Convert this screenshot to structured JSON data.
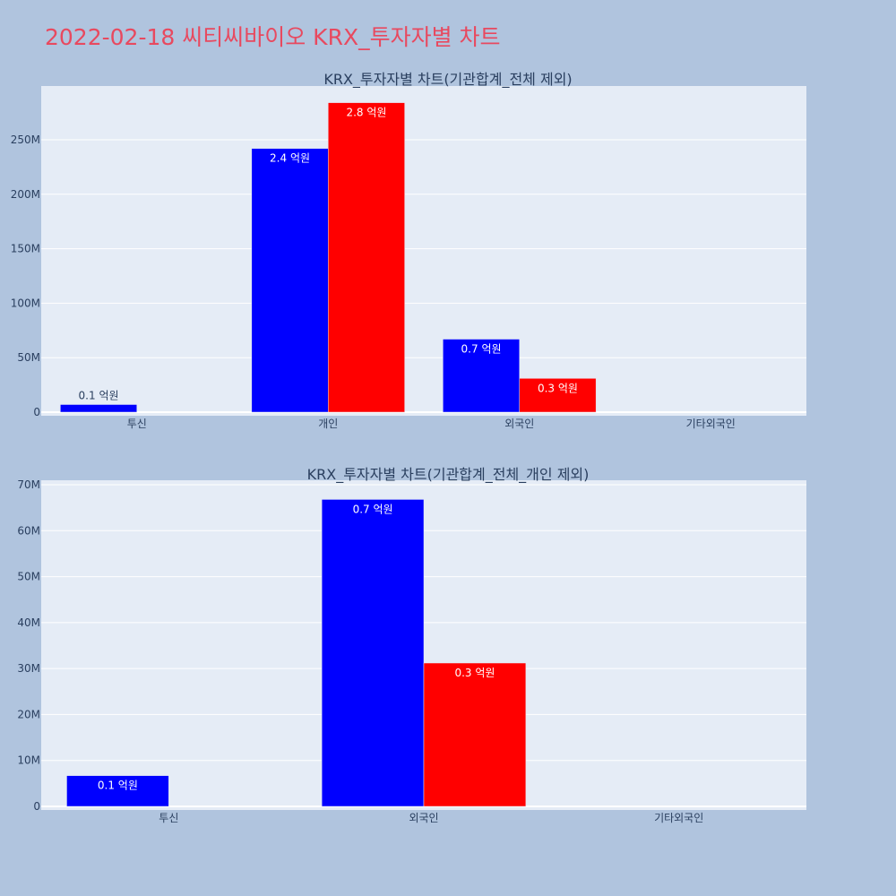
{
  "page_title": "2022-02-18 씨티씨바이오 KRX_투자자별 차트",
  "colors": {
    "background": "#b0c4de",
    "plot_background": "#e5ecf6",
    "title": "#e8495f",
    "series_a": "#0000ff",
    "series_b": "#ff0000",
    "text": "#2a3f5f"
  },
  "chart_data": [
    {
      "type": "bar",
      "title": "KRX_투자자별 차트(기관합계_전체 제외)",
      "categories": [
        "투신",
        "개인",
        "외국인",
        "기타외국인"
      ],
      "series": [
        {
          "color": "#0000ff",
          "values": [
            7000000,
            242000000,
            67000000,
            0
          ],
          "labels": [
            "0.1 억원",
            "2.4 억원",
            "0.7 억원",
            ""
          ]
        },
        {
          "color": "#ff0000",
          "values": [
            0,
            284000000,
            31000000,
            0
          ],
          "labels": [
            "",
            "2.8 억원",
            "0.3 억원",
            ""
          ]
        }
      ],
      "ylim": [
        0,
        300000000
      ],
      "y_ticks": [
        0,
        50000000,
        100000000,
        150000000,
        200000000,
        250000000
      ],
      "y_tick_labels": [
        "0",
        "50M",
        "100M",
        "150M",
        "200M",
        "250M"
      ],
      "grid": true,
      "legend": "none"
    },
    {
      "type": "bar",
      "title": "KRX_투자자별 차트(기관합계_전체_개인 제외)",
      "categories": [
        "투신",
        "외국인",
        "기타외국인"
      ],
      "series": [
        {
          "color": "#0000ff",
          "values": [
            6700000,
            66800000,
            0
          ],
          "labels": [
            "0.1 억원",
            "0.7 억원",
            ""
          ]
        },
        {
          "color": "#ff0000",
          "values": [
            0,
            31200000,
            0
          ],
          "labels": [
            "",
            "0.3 억원",
            ""
          ]
        }
      ],
      "ylim": [
        0,
        70000000
      ],
      "y_ticks": [
        0,
        10000000,
        20000000,
        30000000,
        40000000,
        50000000,
        60000000,
        70000000
      ],
      "y_tick_labels": [
        "0",
        "10M",
        "20M",
        "30M",
        "40M",
        "50M",
        "60M",
        "70M"
      ],
      "grid": true,
      "legend": "none"
    }
  ]
}
